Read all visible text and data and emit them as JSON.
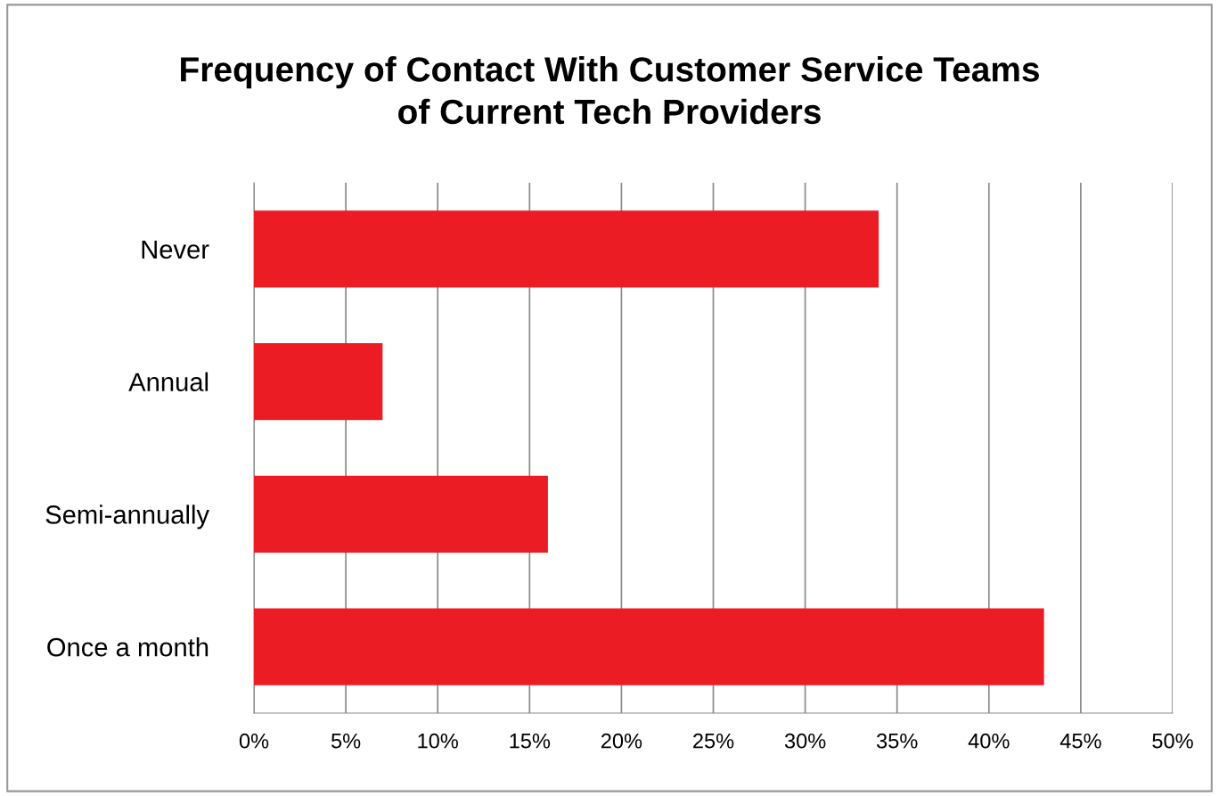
{
  "chart_data": {
    "type": "bar",
    "orientation": "horizontal",
    "title": "Frequency of Contact With Customer Service Teams\nof Current Tech Providers",
    "categories": [
      "Never",
      "Annual",
      "Semi-annually",
      "Once a month"
    ],
    "values": [
      34,
      7,
      16,
      43
    ],
    "color": "#ec1c24",
    "xlim": [
      0,
      50
    ],
    "xticks": [
      {
        "value": 0,
        "label": "0%"
      },
      {
        "value": 5,
        "label": "5%"
      },
      {
        "value": 10,
        "label": "10%"
      },
      {
        "value": 15,
        "label": "15%"
      },
      {
        "value": 20,
        "label": "20%"
      },
      {
        "value": 25,
        "label": "25%"
      },
      {
        "value": 30,
        "label": "30%"
      },
      {
        "value": 35,
        "label": "35%"
      },
      {
        "value": 40,
        "label": "40%"
      },
      {
        "value": 45,
        "label": "45%"
      },
      {
        "value": 50,
        "label": "50%"
      }
    ],
    "grid": "x"
  }
}
